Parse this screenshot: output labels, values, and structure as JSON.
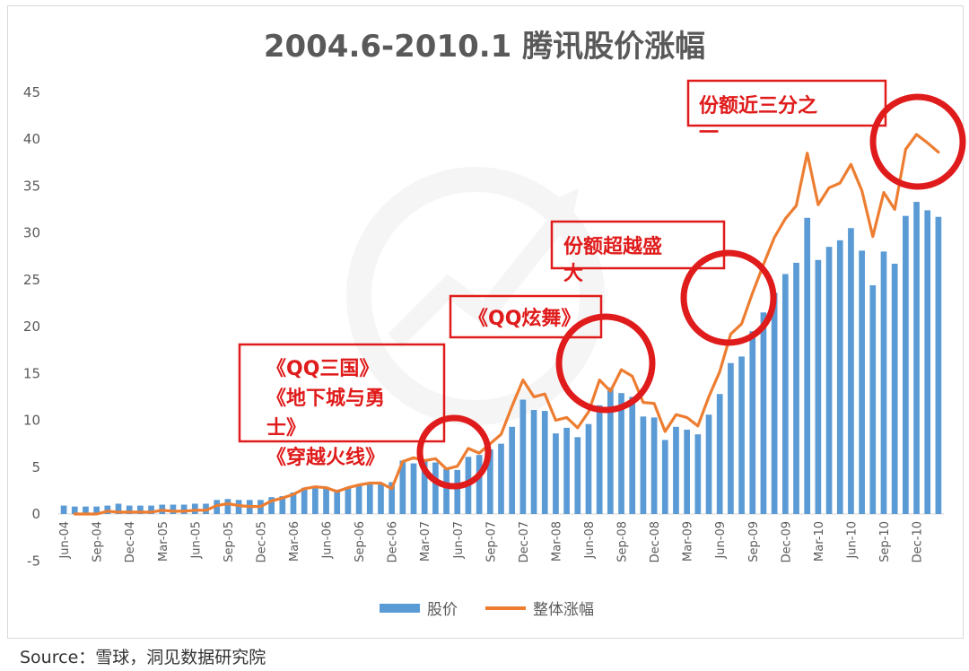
{
  "chart_data": {
    "type": "bar+line",
    "title": "2004.6-2010.1 腾讯股价涨幅",
    "ylim": [
      -5,
      45
    ],
    "yticks": [
      -5,
      0,
      5,
      10,
      15,
      20,
      25,
      30,
      35,
      40,
      45
    ],
    "grid": false,
    "legend_position": "bottom",
    "x_tick_labels": [
      "Jun-04",
      "Sep-04",
      "Dec-04",
      "Mar-05",
      "Jun-05",
      "Sep-05",
      "Dec-05",
      "Mar-06",
      "Jun-06",
      "Sep-06",
      "Dec-06",
      "Mar-07",
      "Jun-07",
      "Sep-07",
      "Dec-07",
      "Mar-08",
      "Jun-08",
      "Sep-08",
      "Dec-08",
      "Mar-09",
      "Jun-09",
      "Sep-09",
      "Dec-09",
      "Mar-10",
      "Jun-10",
      "Sep-10",
      "Dec-10"
    ],
    "series": [
      {
        "name": "股价",
        "type": "bar",
        "color": "#5b9bd5",
        "values": [
          0.9,
          0.8,
          0.8,
          0.8,
          0.9,
          1.1,
          0.9,
          0.9,
          0.9,
          1.0,
          1.0,
          1.0,
          1.1,
          1.1,
          1.5,
          1.6,
          1.5,
          1.5,
          1.5,
          1.8,
          1.9,
          2.3,
          2.8,
          2.9,
          2.8,
          2.6,
          2.8,
          3.1,
          3.3,
          3.3,
          3.4,
          5.7,
          5.4,
          5.8,
          5.5,
          4.8,
          4.7,
          6.1,
          6.3,
          6.9,
          7.5,
          9.3,
          12.2,
          11.1,
          11.0,
          8.6,
          9.2,
          8.2,
          9.6,
          11.6,
          13.5,
          12.9,
          12.5,
          10.4,
          10.3,
          7.9,
          9.3,
          9.0,
          8.5,
          10.6,
          12.8,
          16.1,
          16.8,
          19.5,
          21.5,
          23.6,
          25.6,
          26.8,
          31.6,
          27.1,
          28.5,
          29.2,
          30.5,
          28.1,
          24.4,
          28.0,
          26.7,
          31.8,
          33.3,
          32.4,
          31.7
        ]
      },
      {
        "name": "整体涨幅",
        "type": "line",
        "color": "#ed7d31",
        "values": [
          null,
          0.0,
          0.0,
          0.0,
          0.3,
          0.2,
          0.2,
          0.2,
          0.2,
          0.4,
          0.3,
          0.3,
          0.4,
          0.4,
          0.9,
          1.1,
          0.9,
          0.8,
          0.8,
          1.4,
          1.7,
          2.1,
          2.7,
          2.9,
          2.8,
          2.4,
          2.8,
          3.1,
          3.3,
          3.3,
          2.7,
          5.6,
          6.0,
          5.7,
          5.9,
          4.8,
          5.1,
          7.0,
          6.5,
          7.5,
          8.5,
          11.5,
          14.3,
          12.5,
          12.8,
          10.0,
          10.3,
          9.2,
          10.9,
          14.3,
          13.1,
          15.4,
          14.7,
          11.9,
          11.8,
          8.8,
          10.6,
          10.3,
          9.4,
          12.5,
          15.2,
          19.2,
          20.3,
          23.6,
          26.6,
          29.5,
          31.5,
          32.9,
          38.5,
          33.0,
          34.8,
          35.3,
          37.3,
          34.5,
          29.6,
          34.3,
          32.5,
          38.9,
          40.5,
          39.6,
          38.6
        ]
      }
    ],
    "annotations": [
      {
        "lines": [
          "份额近三分之",
          "一"
        ],
        "type": "box",
        "target": "Nov-10"
      },
      {
        "lines": [
          "份额超越盛",
          "大"
        ],
        "type": "box",
        "target": "Jul-09"
      },
      {
        "lines": [
          "《QQ炫舞》"
        ],
        "type": "box",
        "target": "Jul-08"
      },
      {
        "lines": [
          "《QQ三国》",
          "《地下城与勇",
          "士》",
          "《穿越火线》"
        ],
        "type": "box",
        "target": "Jun-07"
      }
    ]
  },
  "source": "Source：雪球，洞见数据研究院"
}
